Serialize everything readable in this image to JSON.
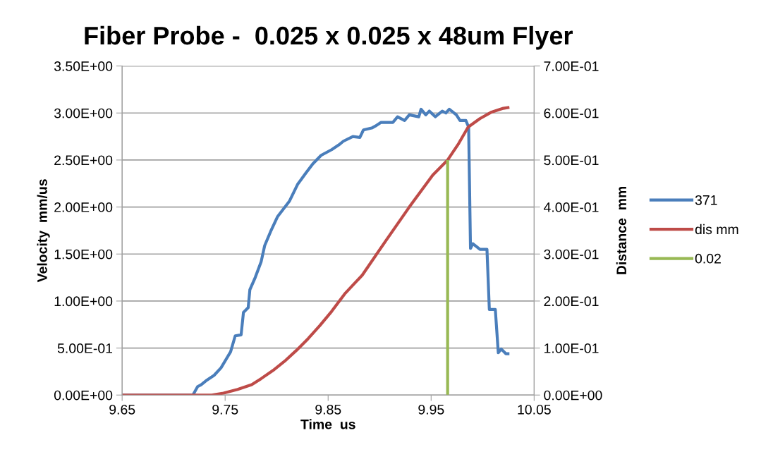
{
  "chart_data": {
    "type": "line",
    "title": "Fiber Probe -  0.025 x 0.025 x 48um Flyer",
    "xlabel": "Time  us",
    "ylabel": "Velocity  mm/us",
    "y2label": "Distance  mm",
    "xlim": [
      9.65,
      10.05
    ],
    "xticks": [
      9.65,
      9.75,
      9.85,
      9.95,
      10.05
    ],
    "ylim": [
      0,
      3.5
    ],
    "yticks": [
      {
        "value": 0,
        "label": "0.00E+00"
      },
      {
        "value": 0.5,
        "label": "5.00E-01"
      },
      {
        "value": 1.0,
        "label": "1.00E+00"
      },
      {
        "value": 1.5,
        "label": "1.50E+00"
      },
      {
        "value": 2.0,
        "label": "2.00E+00"
      },
      {
        "value": 2.5,
        "label": "2.50E+00"
      },
      {
        "value": 3.0,
        "label": "3.00E+00"
      },
      {
        "value": 3.5,
        "label": "3.50E+00"
      }
    ],
    "y2lim": [
      0,
      0.7
    ],
    "y2ticks": [
      {
        "value": 0,
        "label": "0.00E+00"
      },
      {
        "value": 0.1,
        "label": "1.00E-01"
      },
      {
        "value": 0.2,
        "label": "2.00E-01"
      },
      {
        "value": 0.3,
        "label": "3.00E-01"
      },
      {
        "value": 0.4,
        "label": "4.00E-01"
      },
      {
        "value": 0.5,
        "label": "5.00E-01"
      },
      {
        "value": 0.6,
        "label": "6.00E-01"
      },
      {
        "value": 0.7,
        "label": "7.00E-01"
      }
    ],
    "grid": "y",
    "legend": "right",
    "marker": "none",
    "line_style": "solid",
    "series": [
      {
        "name": "371",
        "color": "#4a7ebb",
        "x": [
          9.65,
          9.7187,
          9.7233,
          9.7267,
          9.7324,
          9.7393,
          9.746,
          9.7553,
          9.7598,
          9.7655,
          9.7678,
          9.7724,
          9.774,
          9.7792,
          9.785,
          9.7884,
          9.7942,
          9.801,
          9.8123,
          9.8203,
          9.8283,
          9.8352,
          9.8432,
          9.8534,
          9.8603,
          9.8648,
          9.874,
          9.8808,
          9.8843,
          9.8923,
          9.8957,
          9.9014,
          9.9128,
          9.9174,
          9.9242,
          9.9288,
          9.938,
          9.9402,
          9.9448,
          9.9482,
          9.954,
          9.9608,
          9.9643,
          9.9676,
          9.9745,
          9.978,
          9.9837,
          9.9864,
          9.9882,
          9.9905,
          9.9974,
          10.0042,
          10.0065,
          10.0123,
          10.0152,
          10.018,
          10.0225,
          10.026
        ],
        "values": [
          0,
          0,
          0.09,
          0.11,
          0.16,
          0.21,
          0.29,
          0.46,
          0.63,
          0.64,
          0.88,
          0.93,
          1.12,
          1.25,
          1.42,
          1.59,
          1.74,
          1.9,
          2.06,
          2.24,
          2.36,
          2.46,
          2.55,
          2.61,
          2.66,
          2.7,
          2.75,
          2.74,
          2.82,
          2.84,
          2.86,
          2.9,
          2.9,
          2.96,
          2.92,
          2.98,
          2.96,
          3.04,
          2.98,
          3.02,
          2.96,
          3.02,
          3.0,
          3.04,
          2.98,
          2.92,
          2.92,
          2.85,
          1.56,
          1.61,
          1.55,
          1.55,
          0.91,
          0.91,
          0.45,
          0.49,
          0.44,
          0.44
        ]
      },
      {
        "name": "dis mm",
        "color": "#be4b48",
        "axis": "y2",
        "x": [
          9.65,
          9.6936,
          9.737,
          9.7484,
          9.7621,
          9.7758,
          9.785,
          9.7963,
          9.8078,
          9.8192,
          9.8306,
          9.842,
          9.8534,
          9.866,
          9.8831,
          9.9059,
          9.9288,
          9.9516,
          9.966,
          9.9767,
          9.9859,
          9.9973,
          10.0087,
          10.0201,
          10.026
        ],
        "values": [
          0,
          0,
          0,
          0.004,
          0.012,
          0.022,
          0.035,
          0.052,
          0.072,
          0.095,
          0.12,
          0.148,
          0.178,
          0.215,
          0.255,
          0.328,
          0.4,
          0.468,
          0.5,
          0.535,
          0.57,
          0.588,
          0.602,
          0.61,
          0.612
        ]
      },
      {
        "name": "0.02",
        "color": "#98b954",
        "axis": "y2",
        "x": [
          9.966,
          9.966
        ],
        "values": [
          0,
          0.5
        ]
      }
    ]
  }
}
